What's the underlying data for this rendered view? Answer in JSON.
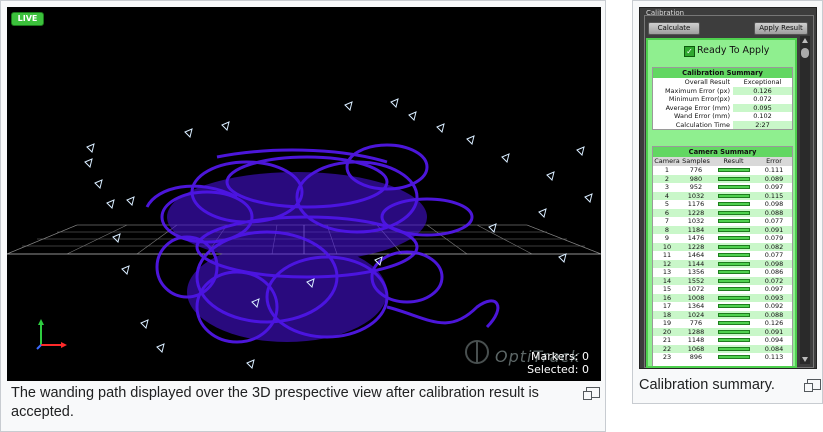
{
  "viewport": {
    "live_badge": "LIVE",
    "markers_label": "Markers: 0",
    "selected_label": "Selected: 0",
    "watermark": "OptiTrack"
  },
  "captions": {
    "left": "The wanding path displayed over the 3D prespective view after calibration result is accepted.",
    "right": "Calibration summary."
  },
  "calibration": {
    "panel_title": "Calibration",
    "calculate_label": "Calculate",
    "apply_label": "Apply Result",
    "status": "Ready To Apply",
    "summary_title": "Calibration Summary",
    "summary_rows": [
      {
        "label": "Overall Result",
        "value": "Exceptional"
      },
      {
        "label": "Maximum Error (px)",
        "value": "0.126"
      },
      {
        "label": "Minimum Error(px)",
        "value": "0.072"
      },
      {
        "label": "Average Error (mm)",
        "value": "0.095"
      },
      {
        "label": "Wand Error (mm)",
        "value": "0.102"
      },
      {
        "label": "Calculation Time",
        "value": "2:27"
      }
    ],
    "camera_title": "Camera Summary",
    "camera_columns": [
      "Camera",
      "Samples",
      "Result",
      "Error"
    ],
    "cameras": [
      {
        "cam": "1",
        "samples": "776",
        "error": "0.111"
      },
      {
        "cam": "2",
        "samples": "980",
        "error": "0.089"
      },
      {
        "cam": "3",
        "samples": "952",
        "error": "0.097"
      },
      {
        "cam": "4",
        "samples": "1032",
        "error": "0.115"
      },
      {
        "cam": "5",
        "samples": "1176",
        "error": "0.098"
      },
      {
        "cam": "6",
        "samples": "1228",
        "error": "0.088"
      },
      {
        "cam": "7",
        "samples": "1032",
        "error": "0.077"
      },
      {
        "cam": "8",
        "samples": "1184",
        "error": "0.091"
      },
      {
        "cam": "9",
        "samples": "1476",
        "error": "0.079"
      },
      {
        "cam": "10",
        "samples": "1228",
        "error": "0.082"
      },
      {
        "cam": "11",
        "samples": "1464",
        "error": "0.077"
      },
      {
        "cam": "12",
        "samples": "1144",
        "error": "0.098"
      },
      {
        "cam": "13",
        "samples": "1356",
        "error": "0.086"
      },
      {
        "cam": "14",
        "samples": "1552",
        "error": "0.072"
      },
      {
        "cam": "15",
        "samples": "1072",
        "error": "0.097"
      },
      {
        "cam": "16",
        "samples": "1008",
        "error": "0.093"
      },
      {
        "cam": "17",
        "samples": "1364",
        "error": "0.092"
      },
      {
        "cam": "18",
        "samples": "1024",
        "error": "0.088"
      },
      {
        "cam": "19",
        "samples": "776",
        "error": "0.126"
      },
      {
        "cam": "20",
        "samples": "1288",
        "error": "0.091"
      },
      {
        "cam": "21",
        "samples": "1148",
        "error": "0.094"
      },
      {
        "cam": "22",
        "samples": "1068",
        "error": "0.084"
      },
      {
        "cam": "23",
        "samples": "896",
        "error": "0.113"
      }
    ]
  }
}
